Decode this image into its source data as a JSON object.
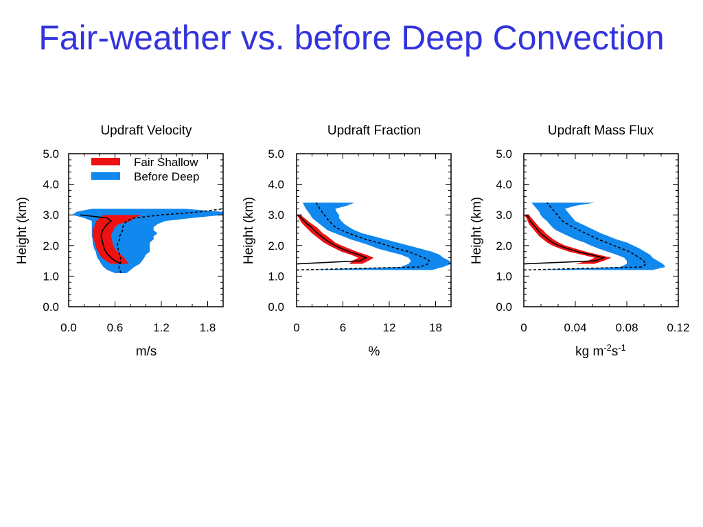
{
  "page_title": "Fair-weather vs. before Deep Convection",
  "colors": {
    "title": "#3333dd",
    "fair_shallow": "#ee1111",
    "before_deep": "#1188ee",
    "line": "#000000"
  },
  "legend": {
    "items": [
      {
        "label": "Fair Shallow",
        "color": "#ee1111"
      },
      {
        "label": "Before Deep",
        "color": "#1188ee"
      }
    ]
  },
  "chart_data": [
    {
      "type": "line",
      "title": "Updraft Velocity",
      "xlabel": "m/s",
      "ylabel": "Height (km)",
      "xlim": [
        0,
        2
      ],
      "ylim": [
        0,
        5
      ],
      "xticks": [
        "0.0",
        "0.6",
        "1.2",
        "1.8"
      ],
      "xtick_values": [
        0,
        0.6,
        1.2,
        1.8
      ],
      "yticks": [
        "0.0",
        "1.0",
        "2.0",
        "3.0",
        "4.0",
        "5.0"
      ],
      "y": [
        1.1,
        1.2,
        1.3,
        1.4,
        1.5,
        1.6,
        1.7,
        1.8,
        1.9,
        2.0,
        2.1,
        2.2,
        2.3,
        2.4,
        2.5,
        2.6,
        2.7,
        2.8,
        2.9,
        3.0
      ],
      "series": [
        {
          "name": "Fair Shallow",
          "band": "fair_shallow",
          "style": "solid",
          "y": [
            1.4,
            1.5,
            1.6,
            1.7,
            1.8,
            1.9,
            2.0,
            2.1,
            2.2,
            2.3,
            2.4,
            2.5,
            2.6,
            2.7,
            2.8,
            2.9,
            3.0
          ],
          "low": [
            0.55,
            0.48,
            0.43,
            0.4,
            0.38,
            0.36,
            0.35,
            0.34,
            0.32,
            0.31,
            0.31,
            0.31,
            0.33,
            0.34,
            0.36,
            0.4,
            0.45
          ],
          "high": [
            0.78,
            0.75,
            0.72,
            0.68,
            0.63,
            0.6,
            0.58,
            0.57,
            0.56,
            0.55,
            0.56,
            0.58,
            0.6,
            0.65,
            0.8,
            0.85,
            0.95
          ],
          "mean": [
            0.68,
            0.6,
            0.55,
            0.51,
            0.48,
            0.46,
            0.45,
            0.44,
            0.43,
            0.42,
            0.43,
            0.44,
            0.47,
            0.5,
            0.55,
            0.5,
            0.15
          ]
        },
        {
          "name": "Before Deep",
          "band": "before_deep",
          "style": "dashed",
          "y": [
            1.1,
            1.2,
            1.3,
            1.4,
            1.5,
            1.6,
            1.7,
            1.8,
            1.9,
            2.0,
            2.1,
            2.2,
            2.3,
            2.4,
            2.5,
            2.6,
            2.7,
            2.8,
            2.9,
            3.0,
            3.1,
            3.2
          ],
          "low": [
            0.6,
            0.5,
            0.45,
            0.42,
            0.4,
            0.37,
            0.36,
            0.35,
            0.33,
            0.32,
            0.31,
            0.31,
            0.3,
            0.3,
            0.3,
            0.3,
            0.3,
            0.3,
            0.2,
            0.05,
            0.1,
            0.3
          ],
          "high": [
            0.75,
            0.8,
            0.85,
            0.92,
            0.95,
            0.98,
            1.0,
            1.05,
            1.05,
            1.05,
            1.05,
            1.1,
            1.1,
            1.15,
            1.1,
            1.1,
            1.15,
            1.25,
            1.6,
            2.0,
            2.0,
            1.5
          ],
          "mean": [
            0.68,
            0.66,
            0.65,
            0.66,
            0.68,
            0.67,
            0.66,
            0.65,
            0.64,
            0.63,
            0.64,
            0.66,
            0.66,
            0.68,
            0.7,
            0.7,
            0.72,
            0.75,
            0.85,
            1.2,
            1.7,
            2.0
          ]
        }
      ]
    },
    {
      "type": "line",
      "title": "Updraft Fraction",
      "xlabel": "%",
      "ylabel": "Height (km)",
      "xlim": [
        0,
        20
      ],
      "ylim": [
        0,
        5
      ],
      "xticks": [
        "0",
        "6",
        "12",
        "18"
      ],
      "xtick_values": [
        0,
        6,
        12,
        18
      ],
      "yticks": [
        "0.0",
        "1.0",
        "2.0",
        "3.0",
        "4.0",
        "5.0"
      ],
      "series": [
        {
          "name": "Fair Shallow",
          "band": "fair_shallow",
          "style": "solid",
          "y": [
            1.4,
            1.5,
            1.6,
            1.7,
            1.8,
            1.9,
            2.0,
            2.1,
            2.2,
            2.3,
            2.4,
            2.5,
            2.6,
            2.7,
            2.8,
            2.9,
            3.0
          ],
          "low": [
            6.8,
            7.2,
            8.0,
            7.0,
            5.8,
            5.0,
            4.2,
            3.5,
            3.0,
            2.5,
            2.0,
            1.6,
            1.2,
            0.8,
            0.5,
            0.3,
            0.0
          ],
          "high": [
            8.5,
            9.3,
            10.0,
            9.0,
            7.8,
            6.8,
            5.8,
            5.0,
            4.5,
            4.0,
            3.4,
            3.0,
            2.6,
            2.0,
            1.5,
            1.0,
            0.5
          ],
          "mean": [
            0.0,
            8.2,
            9.0,
            8.0,
            6.8,
            5.8,
            5.0,
            4.3,
            3.7,
            3.2,
            2.7,
            2.3,
            1.9,
            1.4,
            1.0,
            0.6,
            0.2
          ]
        },
        {
          "name": "Before Deep",
          "band": "before_deep",
          "style": "dashed",
          "y": [
            1.2,
            1.3,
            1.4,
            1.5,
            1.6,
            1.7,
            1.8,
            1.9,
            2.0,
            2.1,
            2.2,
            2.3,
            2.4,
            2.5,
            2.6,
            2.7,
            2.8,
            2.9,
            3.0,
            3.1,
            3.2,
            3.3,
            3.4
          ],
          "low": [
            0.5,
            13.5,
            14.5,
            14.8,
            14.5,
            13.5,
            12.0,
            10.5,
            9.5,
            8.3,
            7.0,
            6.0,
            5.0,
            4.0,
            3.5,
            3.0,
            2.5,
            2.0,
            1.8,
            1.5,
            1.2,
            1.0,
            0.8
          ],
          "high": [
            17.5,
            19.0,
            20.0,
            19.8,
            19.0,
            18.5,
            17.5,
            16.0,
            14.5,
            13.0,
            11.5,
            10.0,
            8.5,
            7.5,
            6.8,
            6.2,
            5.8,
            5.5,
            5.5,
            5.2,
            5.0,
            6.5,
            7.5
          ],
          "mean": [
            0.0,
            16.0,
            17.0,
            17.2,
            16.5,
            15.5,
            14.5,
            13.0,
            11.8,
            10.5,
            9.0,
            7.8,
            6.8,
            5.8,
            5.0,
            4.6,
            4.2,
            3.9,
            3.6,
            3.3,
            3.0,
            2.8,
            2.5
          ]
        }
      ]
    },
    {
      "type": "line",
      "title": "Updraft Mass Flux",
      "xlabel": "kg m-2s-1",
      "ylabel": "Height (km)",
      "xlim": [
        0,
        0.12
      ],
      "ylim": [
        0,
        5
      ],
      "xticks": [
        "0",
        "0.04",
        "0.08",
        "0.12"
      ],
      "xtick_values": [
        0,
        0.04,
        0.08,
        0.12
      ],
      "yticks": [
        "0.0",
        "1.0",
        "2.0",
        "3.0",
        "4.0",
        "5.0"
      ],
      "series": [
        {
          "name": "Fair Shallow",
          "band": "fair_shallow",
          "style": "solid",
          "y": [
            1.4,
            1.5,
            1.6,
            1.7,
            1.8,
            1.9,
            2.0,
            2.1,
            2.2,
            2.3,
            2.4,
            2.5,
            2.6,
            2.7,
            2.8,
            2.9,
            3.0
          ],
          "low": [
            0.04,
            0.05,
            0.055,
            0.045,
            0.035,
            0.028,
            0.022,
            0.018,
            0.015,
            0.012,
            0.01,
            0.008,
            0.006,
            0.004,
            0.003,
            0.002,
            0.0
          ],
          "high": [
            0.055,
            0.062,
            0.068,
            0.058,
            0.048,
            0.04,
            0.032,
            0.027,
            0.023,
            0.02,
            0.017,
            0.015,
            0.012,
            0.01,
            0.008,
            0.006,
            0.004
          ],
          "mean": [
            0.0,
            0.056,
            0.062,
            0.052,
            0.042,
            0.034,
            0.027,
            0.022,
            0.019,
            0.016,
            0.013,
            0.011,
            0.009,
            0.007,
            0.005,
            0.004,
            0.002
          ]
        },
        {
          "name": "Before Deep",
          "band": "before_deep",
          "style": "dashed",
          "y": [
            1.2,
            1.3,
            1.4,
            1.5,
            1.6,
            1.7,
            1.8,
            1.9,
            2.0,
            2.1,
            2.2,
            2.3,
            2.4,
            2.5,
            2.6,
            2.7,
            2.8,
            2.9,
            3.0,
            3.1,
            3.2,
            3.3,
            3.4
          ],
          "low": [
            0.005,
            0.075,
            0.08,
            0.08,
            0.078,
            0.072,
            0.065,
            0.058,
            0.052,
            0.047,
            0.04,
            0.035,
            0.03,
            0.025,
            0.022,
            0.02,
            0.018,
            0.015,
            0.013,
            0.012,
            0.01,
            0.008,
            0.006
          ],
          "high": [
            0.1,
            0.11,
            0.108,
            0.104,
            0.1,
            0.098,
            0.094,
            0.09,
            0.085,
            0.08,
            0.072,
            0.066,
            0.06,
            0.055,
            0.05,
            0.045,
            0.04,
            0.038,
            0.036,
            0.034,
            0.032,
            0.04,
            0.055
          ],
          "mean": [
            0.0,
            0.092,
            0.095,
            0.093,
            0.09,
            0.086,
            0.082,
            0.076,
            0.07,
            0.064,
            0.058,
            0.053,
            0.048,
            0.043,
            0.038,
            0.034,
            0.03,
            0.028,
            0.026,
            0.024,
            0.022,
            0.02,
            0.018
          ]
        }
      ]
    }
  ]
}
